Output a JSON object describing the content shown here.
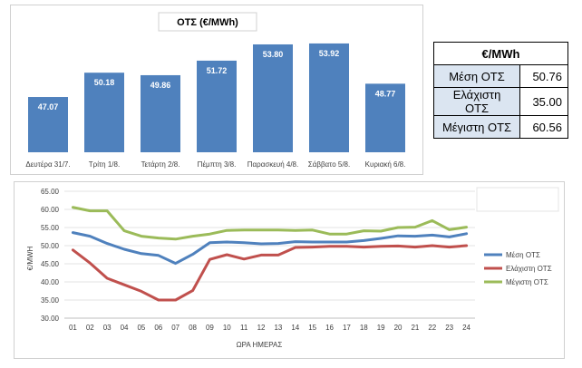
{
  "bar_chart": {
    "title": "ΟΤΣ (€/MWh)"
  },
  "summary_table": {
    "header": "€/MWh",
    "rows": [
      {
        "label": "Μέση ΟΤΣ",
        "value": "50.76"
      },
      {
        "label": "Ελάχιστη ΟΤΣ",
        "value": "35.00"
      },
      {
        "label": "Μέγιστη ΟΤΣ",
        "value": "60.56"
      }
    ]
  },
  "colors": {
    "bar": "#4f81bd",
    "mean": "#4f81bd",
    "min": "#c0504d",
    "max": "#9bbb59"
  },
  "chart_data": [
    {
      "type": "bar",
      "title": "ΟΤΣ (€/MWh)",
      "categories": [
        "Δευτέρα 31/7.",
        "Τρίτη 1/8.",
        "Τετάρτη 2/8.",
        "Πέμπτη 3/8.",
        "Παρασκευή 4/8.",
        "Σάββατο 5/8.",
        "Κυριακή 6/8."
      ],
      "values": [
        47.07,
        50.18,
        49.86,
        51.72,
        53.8,
        53.92,
        48.77
      ],
      "value_labels": [
        "47.07",
        "50.18",
        "49.86",
        "51.72",
        "53.80",
        "53.92",
        "48.77"
      ],
      "ylim": [
        40,
        56
      ]
    },
    {
      "type": "line",
      "xlabel": "ΩΡΑ ΗΜΕΡΑΣ",
      "ylabel": "€/MWH",
      "x": [
        "01",
        "02",
        "03",
        "04",
        "05",
        "06",
        "07",
        "08",
        "09",
        "10",
        "11",
        "12",
        "13",
        "14",
        "15",
        "16",
        "17",
        "18",
        "19",
        "20",
        "21",
        "22",
        "23",
        "24"
      ],
      "yticks": [
        "30.00",
        "35.00",
        "40.00",
        "45.00",
        "50.00",
        "55.00",
        "60.00",
        "65.00"
      ],
      "ylim": [
        30,
        65
      ],
      "grid": true,
      "legend_position": "right",
      "series": [
        {
          "name": "Μέση ΟΤΣ",
          "values": [
            53.6,
            52.6,
            50.6,
            49.0,
            47.8,
            47.3,
            45.1,
            47.6,
            50.8,
            51.0,
            50.8,
            50.5,
            50.6,
            51.1,
            51.0,
            51.0,
            51.0,
            51.4,
            52.0,
            52.7,
            52.6,
            52.9,
            52.4,
            53.3
          ]
        },
        {
          "name": "Ελάχιστη ΟΤΣ",
          "values": [
            48.8,
            45.2,
            41.0,
            39.2,
            37.4,
            35.0,
            35.0,
            37.6,
            46.2,
            47.5,
            46.3,
            47.4,
            47.4,
            49.5,
            49.6,
            49.8,
            49.8,
            49.6,
            49.8,
            49.9,
            49.6,
            50.0,
            49.6,
            50.0
          ]
        },
        {
          "name": "Μέγιστη ΟΤΣ",
          "values": [
            60.56,
            59.6,
            59.6,
            54.1,
            52.6,
            52.1,
            51.8,
            52.6,
            53.2,
            54.2,
            54.3,
            54.3,
            54.3,
            54.2,
            54.3,
            53.2,
            53.2,
            54.1,
            54.0,
            55.0,
            55.1,
            56.9,
            54.4,
            55.1
          ]
        }
      ]
    }
  ]
}
